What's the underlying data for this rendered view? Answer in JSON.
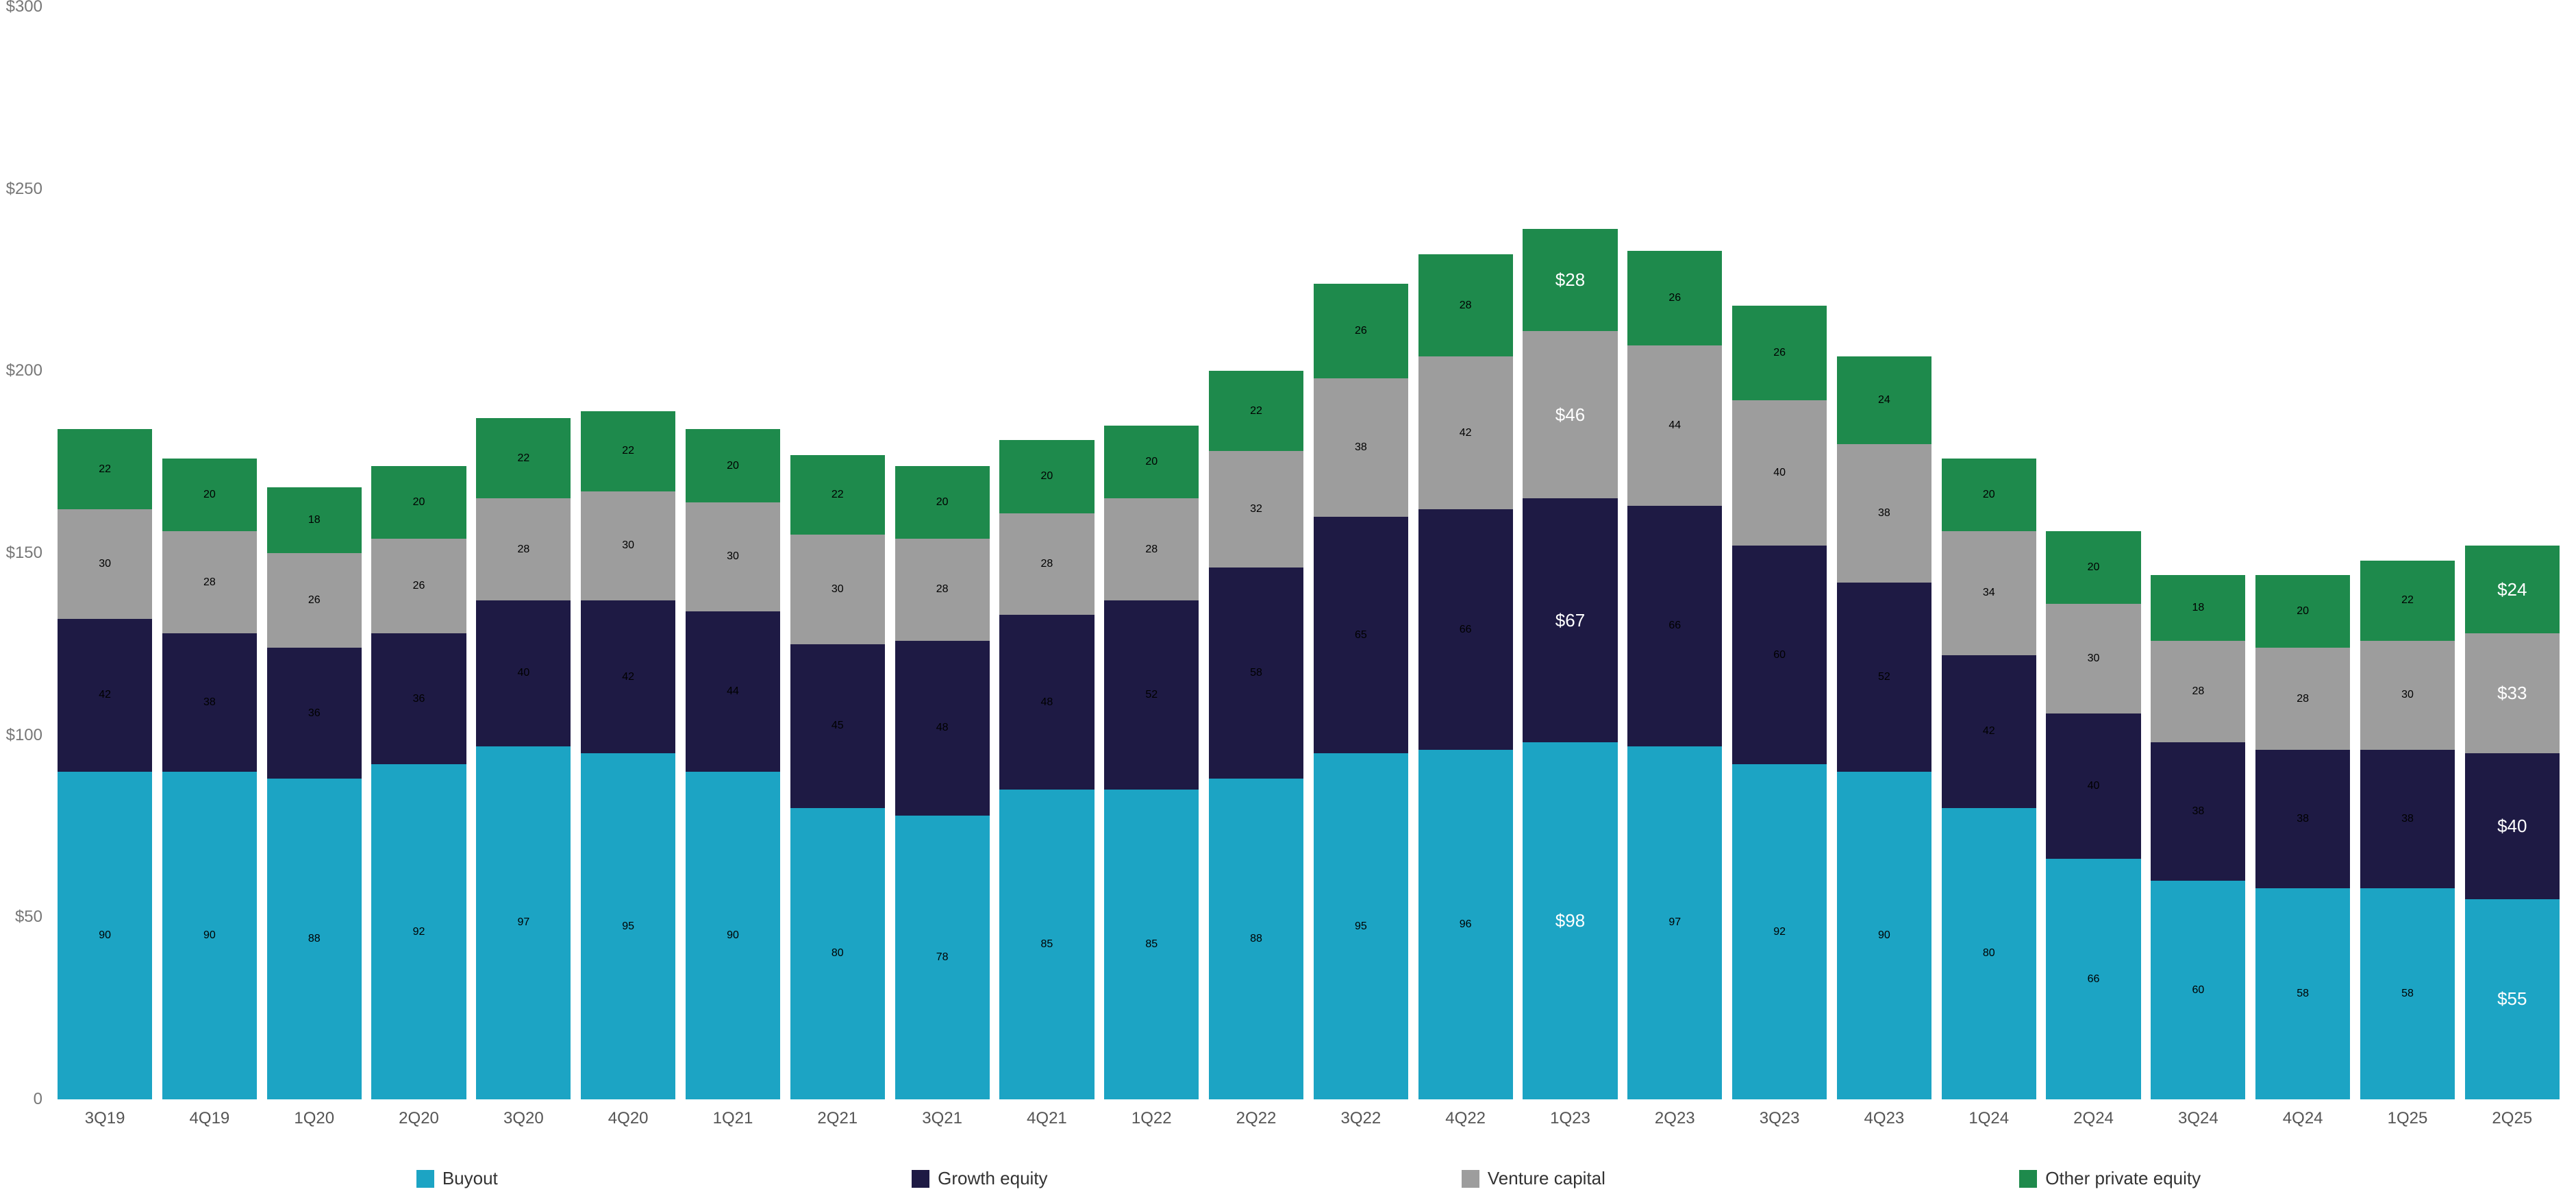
{
  "chart": {
    "type": "stacked-bar",
    "background_color": "#ffffff",
    "ylim": [
      0,
      300
    ],
    "ytick_step": 50,
    "y_tick_labels": [
      "0",
      "$50",
      "$100",
      "$150",
      "$200",
      "$250",
      "$300"
    ],
    "y_label_color": "#777777",
    "x_label_color": "#555555",
    "axis_fontsize": 24,
    "legend_fontsize": 26,
    "value_label_fontsize": 26,
    "value_label_color": "#ffffff",
    "bar_gap_pct": 0.4,
    "series": [
      {
        "key": "buyout",
        "label": "Buyout",
        "color": "#1ca4c4"
      },
      {
        "key": "growth",
        "label": "Growth equity",
        "color": "#1e1a44"
      },
      {
        "key": "venture",
        "label": "Venture capital",
        "color": "#9d9d9d"
      },
      {
        "key": "other",
        "label": "Other private equity",
        "color": "#1e8a4c"
      }
    ],
    "categories": [
      "3Q19",
      "4Q19",
      "1Q20",
      "2Q20",
      "3Q20",
      "4Q20",
      "1Q21",
      "2Q21",
      "3Q21",
      "4Q21",
      "1Q22",
      "2Q22",
      "3Q22",
      "4Q22",
      "1Q23",
      "2Q23",
      "3Q23",
      "4Q23",
      "1Q24",
      "2Q24",
      "3Q24",
      "4Q24",
      "1Q25",
      "2Q25"
    ],
    "values": {
      "buyout": [
        90,
        90,
        88,
        92,
        97,
        95,
        90,
        80,
        78,
        85,
        85,
        88,
        95,
        96,
        98,
        97,
        92,
        90,
        80,
        66,
        60,
        58,
        58,
        55
      ],
      "growth": [
        42,
        38,
        36,
        36,
        40,
        42,
        44,
        45,
        48,
        48,
        52,
        58,
        65,
        66,
        67,
        66,
        60,
        52,
        42,
        40,
        38,
        38,
        38,
        40
      ],
      "venture": [
        30,
        28,
        26,
        26,
        28,
        30,
        30,
        30,
        28,
        28,
        28,
        32,
        38,
        42,
        46,
        44,
        40,
        38,
        34,
        30,
        28,
        28,
        30,
        33
      ],
      "other": [
        22,
        20,
        18,
        20,
        22,
        22,
        20,
        22,
        20,
        20,
        20,
        22,
        26,
        28,
        28,
        26,
        26,
        24,
        20,
        20,
        18,
        20,
        22,
        24
      ]
    },
    "value_labels": [
      {
        "category_index": 14,
        "labels": {
          "buyout": "$98",
          "growth": "$67",
          "venture": "$46",
          "other": "$28"
        }
      },
      {
        "category_index": 23,
        "labels": {
          "buyout": "$55",
          "growth": "$40",
          "venture": "$33",
          "other": "$24"
        }
      }
    ]
  }
}
